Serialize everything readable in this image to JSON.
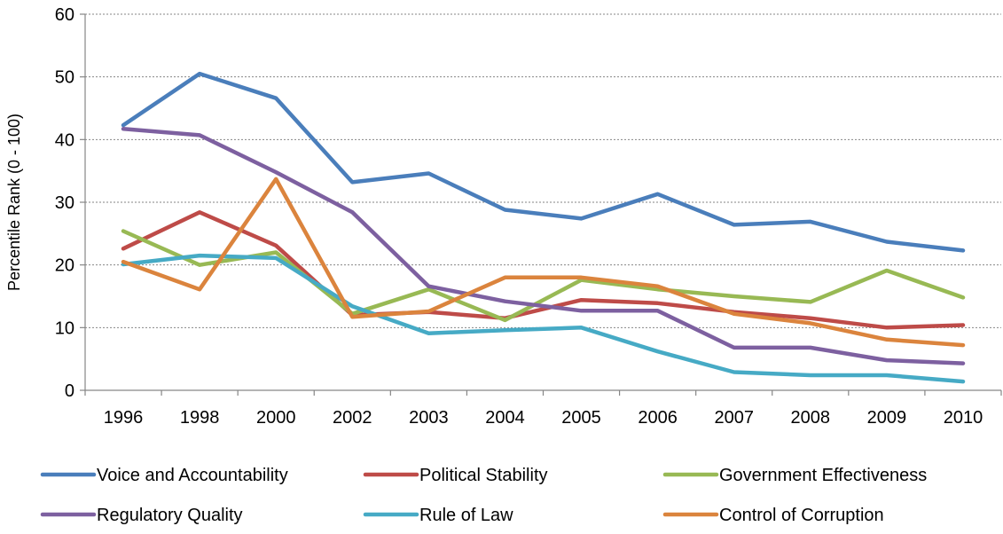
{
  "chart_data": {
    "type": "line",
    "title": "",
    "xlabel": "",
    "ylabel": "Percentile Rank (0 - 100)",
    "ylim": [
      0,
      60
    ],
    "yticks": [
      0,
      10,
      20,
      30,
      40,
      50,
      60
    ],
    "grid": "horizontal dashed",
    "legend_position": "bottom",
    "categories": [
      "1996",
      "1998",
      "2000",
      "2002",
      "2003",
      "2004",
      "2005",
      "2006",
      "2007",
      "2008",
      "2009",
      "2010"
    ],
    "series": [
      {
        "name": "Voice and Accountability",
        "color": "#4A7EBB",
        "values": [
          42.3,
          50.5,
          46.6,
          33.2,
          34.6,
          28.8,
          27.4,
          31.3,
          26.4,
          26.9,
          23.7,
          22.3
        ]
      },
      {
        "name": "Political Stability",
        "color": "#BE4B48",
        "values": [
          22.6,
          28.4,
          23.1,
          12.0,
          12.5,
          11.5,
          14.4,
          13.9,
          12.5,
          11.5,
          10.0,
          10.4
        ]
      },
      {
        "name": "Government Effectiveness",
        "color": "#98B954",
        "values": [
          25.4,
          20.0,
          22.0,
          12.2,
          16.1,
          11.2,
          17.6,
          16.1,
          15.0,
          14.1,
          19.1,
          14.8
        ]
      },
      {
        "name": "Regulatory Quality",
        "color": "#7D60A0",
        "values": [
          41.7,
          40.7,
          34.8,
          28.4,
          16.6,
          14.2,
          12.7,
          12.7,
          6.8,
          6.8,
          4.8,
          4.3
        ]
      },
      {
        "name": "Rule of Law",
        "color": "#46AAC5",
        "values": [
          20.1,
          21.5,
          21.1,
          13.4,
          9.1,
          9.6,
          10.0,
          6.2,
          2.9,
          2.4,
          2.4,
          1.4
        ]
      },
      {
        "name": "Control of Corruption",
        "color": "#DB843D",
        "values": [
          20.5,
          16.1,
          33.7,
          11.7,
          12.6,
          18.0,
          18.0,
          16.6,
          12.2,
          10.7,
          8.1,
          7.2
        ]
      }
    ]
  }
}
